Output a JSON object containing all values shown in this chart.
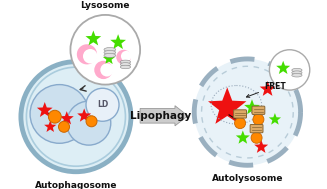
{
  "bg_color": "#ffffff",
  "title_lysosome": "Lysosome",
  "title_autophagosome": "Autophagosome",
  "title_autolysosome": "Autolysosome",
  "title_lipophagy": "Lipophagy",
  "title_fret": "FRET",
  "title_ld": "LD",
  "color_green_star": "#44dd00",
  "color_red_star": "#ee1111",
  "color_pink": "#ffaacc",
  "color_orange": "#ff8800",
  "color_gray": "#aaaaaa",
  "color_light_blue": "#ddeef5",
  "color_vesicle_fill": "#cce0ee",
  "color_autolyso_fill": "#e8f2f8",
  "text_color": "#111111"
}
